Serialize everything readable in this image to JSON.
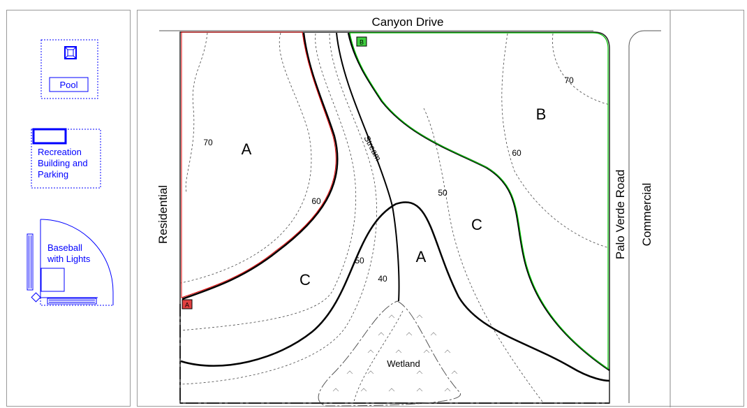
{
  "palette": {
    "items": [
      {
        "label": "Pool"
      },
      {
        "label_lines": [
          "Recreation",
          "Building and",
          "Parking"
        ]
      },
      {
        "label_lines": [
          "Baseball",
          "with Lights"
        ]
      }
    ]
  },
  "map": {
    "roads": {
      "top": "Canyon Drive",
      "left": "Residential",
      "right": "Palo Verde Road",
      "far_right": "Commercial"
    },
    "stream": "Stream",
    "wetland": "Wetland",
    "markers": {
      "a": "A",
      "b": "B"
    },
    "zones": [
      "A",
      "B",
      "C",
      "A",
      "C"
    ],
    "contours": [
      "70",
      "70",
      "60",
      "60",
      "50",
      "50",
      "40"
    ],
    "colors": {
      "red_boundary": "#e00000",
      "green_boundary": "#00c000",
      "palette_blue": "#0000ff"
    }
  }
}
